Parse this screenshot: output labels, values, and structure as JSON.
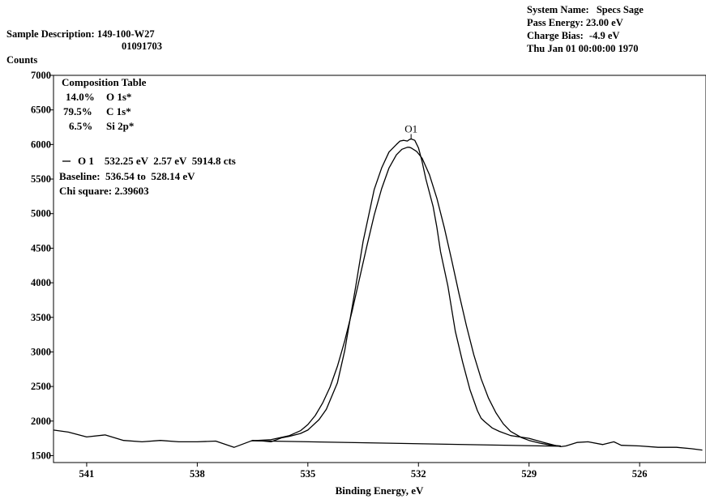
{
  "header": {
    "sample_description_label": "Sample Description:",
    "sample_description": "149-100-W27",
    "sample_id": "01091703",
    "system_name_label": "System Name:",
    "system_name": "Specs Sage",
    "pass_energy_label": "Pass Energy:",
    "pass_energy": "23.00 eV",
    "charge_bias_label": "Charge Bias:",
    "charge_bias": "-4.9 eV",
    "date": "Thu Jan 01 00:00:00 1970"
  },
  "composition_table": {
    "title": "Composition Table",
    "rows": [
      {
        "percent": "14.0%",
        "element": "O 1s*"
      },
      {
        "percent": "79.5%",
        "element": "C 1s*"
      },
      {
        "percent": "6.5%",
        "element": "Si 2p*"
      }
    ]
  },
  "fit_info": {
    "peak_line": "O 1    532.25 eV  2.57 eV  5914.8 cts",
    "baseline": "Baseline:  536.54 to  528.14 eV",
    "chi_square": "Chi square: 2.39603"
  },
  "chart_data": {
    "type": "line",
    "title": "",
    "xlabel": "Binding Energy, eV",
    "ylabel": "Counts",
    "xlim": [
      541.9,
      524.2
    ],
    "x_reversed": true,
    "ylim": [
      1400,
      7000
    ],
    "x_ticks": [
      541,
      538,
      535,
      532,
      529,
      526
    ],
    "y_ticks": [
      1500,
      2000,
      2500,
      3000,
      3500,
      4000,
      4500,
      5000,
      5500,
      6000,
      6500,
      7000
    ],
    "grid": false,
    "peak_label": {
      "text": "O1",
      "x": 532.2,
      "y": 6080
    },
    "series": [
      {
        "x": [
          541.9,
          541.5,
          541.0,
          540.5,
          540.0,
          539.5,
          539.0,
          538.5,
          538.0,
          537.5,
          537.0,
          536.5,
          536.2,
          536.0,
          535.7,
          535.5,
          535.2,
          535.0,
          534.7,
          534.5,
          534.2,
          534.0,
          533.7,
          533.5,
          533.2,
          533.0,
          532.8,
          532.6,
          532.5,
          532.4,
          532.3,
          532.25,
          532.2,
          532.1,
          532.0,
          531.9,
          531.8,
          531.6,
          531.5,
          531.4,
          531.2,
          531.0,
          530.8,
          530.6,
          530.4,
          530.3,
          530.2,
          530.0,
          529.8,
          529.5,
          529.0,
          528.6,
          528.3,
          528.14,
          528.0,
          527.7,
          527.4,
          527.0,
          526.7,
          526.5,
          526.0,
          525.5,
          525.0,
          524.6,
          524.3
        ],
        "y": [
          1870,
          1840,
          1770,
          1800,
          1720,
          1700,
          1720,
          1700,
          1700,
          1710,
          1620,
          1720,
          1710,
          1700,
          1760,
          1780,
          1820,
          1870,
          2020,
          2170,
          2550,
          3020,
          3950,
          4600,
          5350,
          5660,
          5890,
          6000,
          6050,
          6060,
          6050,
          6070,
          6080,
          6060,
          5950,
          5750,
          5500,
          5100,
          4800,
          4450,
          3950,
          3300,
          2850,
          2450,
          2150,
          2040,
          1990,
          1900,
          1850,
          1790,
          1750,
          1690,
          1650,
          1630,
          1640,
          1690,
          1700,
          1660,
          1700,
          1650,
          1640,
          1620,
          1620,
          1600,
          1580
        ]
      },
      {
        "x": [
          536.54,
          536.0,
          535.5,
          535.2,
          535.0,
          534.8,
          534.6,
          534.4,
          534.2,
          534.0,
          533.8,
          533.6,
          533.4,
          533.2,
          533.0,
          532.8,
          532.6,
          532.45,
          532.3,
          532.25,
          532.2,
          532.05,
          531.9,
          531.7,
          531.5,
          531.3,
          531.1,
          530.9,
          530.7,
          530.5,
          530.3,
          530.1,
          529.9,
          529.7,
          529.5,
          529.2,
          529.0,
          528.7,
          528.4,
          528.14
        ],
        "y": [
          1715,
          1730,
          1790,
          1860,
          1950,
          2080,
          2260,
          2490,
          2790,
          3160,
          3590,
          4060,
          4530,
          4980,
          5360,
          5660,
          5850,
          5930,
          5960,
          5960,
          5950,
          5900,
          5800,
          5560,
          5220,
          4800,
          4330,
          3840,
          3380,
          2960,
          2610,
          2330,
          2120,
          1960,
          1850,
          1760,
          1720,
          1680,
          1650,
          1640
        ]
      },
      {
        "x": [
          536.54,
          528.14
        ],
        "y": [
          1715,
          1635
        ]
      }
    ]
  }
}
